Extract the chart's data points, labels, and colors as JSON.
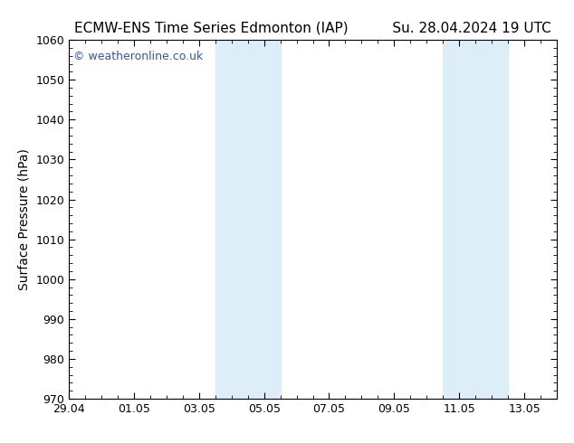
{
  "title_left": "ECMW-ENS Time Series Edmonton (IAP)",
  "title_right": "Su. 28.04.2024 19 UTC",
  "ylabel": "Surface Pressure (hPa)",
  "ylim": [
    970,
    1060
  ],
  "yticks": [
    970,
    980,
    990,
    1000,
    1010,
    1020,
    1030,
    1040,
    1050,
    1060
  ],
  "xlim_start": 0,
  "xlim_end": 15,
  "xtick_labels": [
    "29.04",
    "01.05",
    "03.05",
    "05.05",
    "07.05",
    "09.05",
    "11.05",
    "13.05"
  ],
  "xtick_positions": [
    0,
    2,
    4,
    6,
    8,
    10,
    12,
    14
  ],
  "shaded_bands": [
    {
      "x_start": 4.5,
      "x_end": 6.5
    },
    {
      "x_start": 11.5,
      "x_end": 13.5
    }
  ],
  "shaded_color": "#ddeef8",
  "background_color": "#ffffff",
  "plot_bg_color": "#ffffff",
  "border_color": "#000000",
  "watermark_text": "© weatheronline.co.uk",
  "watermark_color": "#3355aa",
  "title_fontsize": 11,
  "label_fontsize": 10,
  "tick_fontsize": 9,
  "watermark_fontsize": 9
}
